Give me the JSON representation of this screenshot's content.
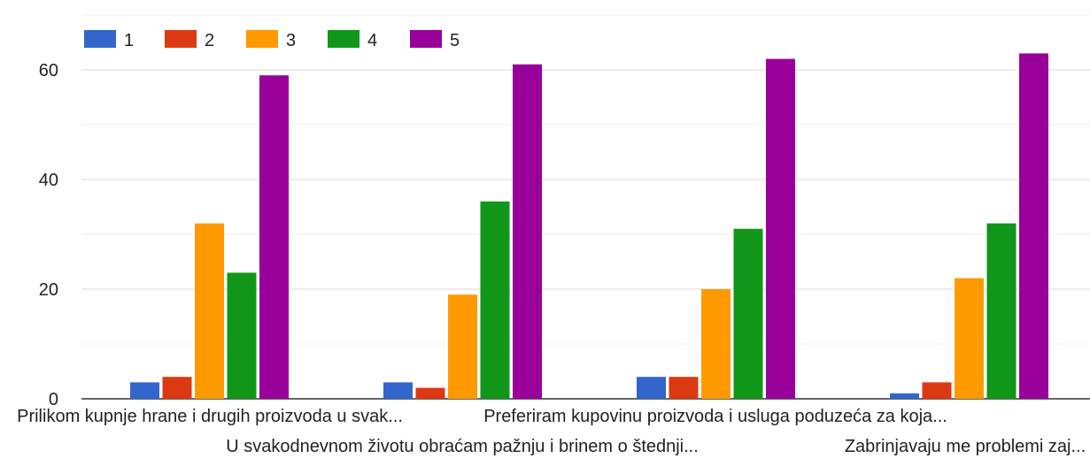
{
  "chart_data": {
    "type": "bar",
    "categories": [
      "Prilikom kupnje hrane i drugih proizvoda u svak...",
      "U svakodnevnom životu obraćam pažnju i brinem o štednji...",
      "Preferiram kupovinu proizvoda i usluga poduzeća za koja...",
      "Zabrinjavaju me problemi zaj..."
    ],
    "series": [
      {
        "name": "1",
        "color": "#3366cc",
        "values": [
          3,
          3,
          4,
          1
        ]
      },
      {
        "name": "2",
        "color": "#dc3912",
        "values": [
          4,
          2,
          4,
          3
        ]
      },
      {
        "name": "3",
        "color": "#ff9900",
        "values": [
          32,
          19,
          20,
          22
        ]
      },
      {
        "name": "4",
        "color": "#109618",
        "values": [
          23,
          36,
          31,
          32
        ]
      },
      {
        "name": "5",
        "color": "#990099",
        "values": [
          59,
          61,
          62,
          63
        ]
      }
    ],
    "yticks": [
      "0",
      "20",
      "40",
      "60"
    ],
    "ylim": [
      0,
      60
    ],
    "grid": true,
    "legend_position": "top-left",
    "title": "",
    "xlabel": "",
    "ylabel": ""
  }
}
